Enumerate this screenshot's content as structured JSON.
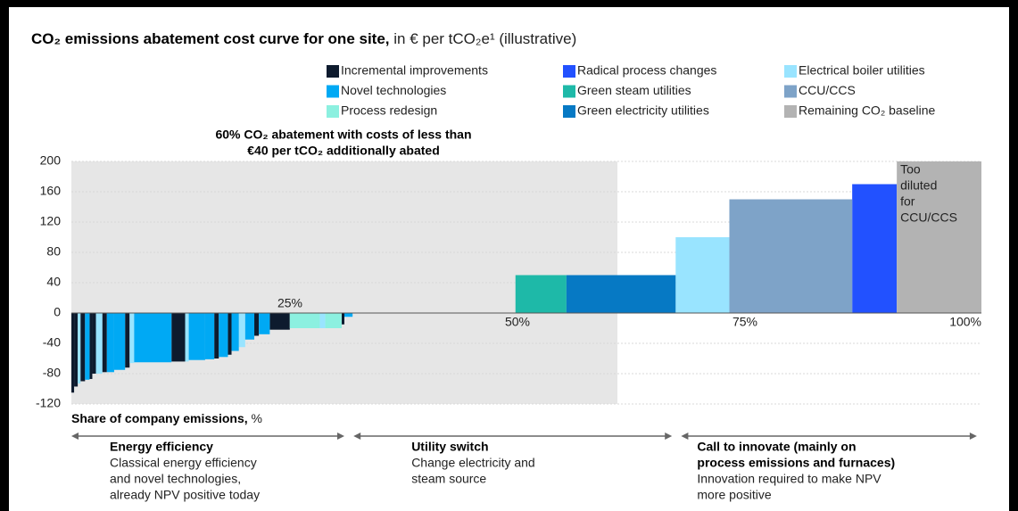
{
  "chart_data": {
    "type": "cost-curve",
    "title": "CO₂ emissions abatement cost curve for one site,",
    "subtitle": "in € per tCO₂e¹ (illustrative)",
    "annotation": [
      "60% CO₂ abatement with costs of less than",
      "€40 per tCO₂ additionally abated"
    ],
    "highlight": [
      0,
      60
    ],
    "bar_note": [
      "Too",
      "diluted",
      "for",
      "CCU/CCS"
    ],
    "xlabel": "Share of company emissions,",
    "xlabel_unit": "%",
    "xlim": [
      0,
      100
    ],
    "xticks": [
      {
        "value": 25,
        "label": "25%"
      },
      {
        "value": 50,
        "label": "50%"
      },
      {
        "value": 75,
        "label": "75%"
      },
      {
        "value": 100,
        "label": "100%"
      }
    ],
    "ylim": [
      -120,
      200
    ],
    "yticks": [
      -120,
      -80,
      -40,
      0,
      40,
      80,
      120,
      160,
      200
    ],
    "grid": true,
    "series": [
      {
        "name": "Incremental improvements",
        "color": "#0d1b2e",
        "bars": [
          {
            "x": [
              0,
              0.3
            ],
            "value": -105
          },
          {
            "x": [
              0.3,
              0.7
            ],
            "value": -97
          },
          {
            "x": [
              1.0,
              1.5
            ],
            "value": -90
          },
          {
            "x": [
              2.0,
              2.3
            ],
            "value": -87
          },
          {
            "x": [
              2.3,
              2.7
            ],
            "value": -80
          },
          {
            "x": [
              3.4,
              3.9
            ],
            "value": -78
          },
          {
            "x": [
              5.9,
              6.4
            ],
            "value": -72
          },
          {
            "x": [
              11.0,
              12.5
            ],
            "value": -64
          },
          {
            "x": [
              15.7,
              16.2
            ],
            "value": -60
          },
          {
            "x": [
              17.2,
              17.6
            ],
            "value": -55
          },
          {
            "x": [
              20.1,
              20.6
            ],
            "value": -30
          },
          {
            "x": [
              21.8,
              24.0
            ],
            "value": -22
          },
          {
            "x": [
              29.7,
              30.0
            ],
            "value": -15
          }
        ]
      },
      {
        "name": "Radical process changes",
        "color": "#2251ff",
        "bars": [
          {
            "x": [
              85.8,
              90.7
            ],
            "value": 170
          }
        ]
      },
      {
        "name": "Electrical boiler utilities",
        "color": "#99e4ff",
        "bars": [
          {
            "x": [
              0.7,
              1.0
            ],
            "value": -93
          },
          {
            "x": [
              2.7,
              3.4
            ],
            "value": -80
          },
          {
            "x": [
              6.4,
              6.9
            ],
            "value": -66
          },
          {
            "x": [
              12.5,
              12.9
            ],
            "value": -64
          },
          {
            "x": [
              18.4,
              19.1
            ],
            "value": -45
          },
          {
            "x": [
              27.3,
              27.9
            ],
            "value": -20
          },
          {
            "x": [
              66.4,
              72.3
            ],
            "value": 100
          }
        ]
      },
      {
        "name": "Novel technologies",
        "color": "#00a9f4",
        "bars": [
          {
            "x": [
              1.5,
              2.0
            ],
            "value": -88
          },
          {
            "x": [
              3.9,
              4.7
            ],
            "value": -78
          },
          {
            "x": [
              4.7,
              5.9
            ],
            "value": -75
          },
          {
            "x": [
              6.9,
              11.0
            ],
            "value": -65
          },
          {
            "x": [
              12.9,
              14.7
            ],
            "value": -62
          },
          {
            "x": [
              14.7,
              15.7
            ],
            "value": -61
          },
          {
            "x": [
              16.2,
              17.2
            ],
            "value": -58
          },
          {
            "x": [
              17.6,
              18.4
            ],
            "value": -50
          },
          {
            "x": [
              19.1,
              20.1
            ],
            "value": -35
          },
          {
            "x": [
              20.6,
              21.8
            ],
            "value": -28
          },
          {
            "x": [
              30.0,
              30.9
            ],
            "value": -5
          }
        ]
      },
      {
        "name": "Green steam utilities",
        "color": "#1eb9a8",
        "bars": [
          {
            "x": [
              48.8,
              54.4
            ],
            "value": 50
          }
        ]
      },
      {
        "name": "CCU/CCS",
        "color": "#7ea3c8",
        "bars": [
          {
            "x": [
              72.3,
              85.8
            ],
            "value": 150
          }
        ]
      },
      {
        "name": "Process redesign",
        "color": "#8cf0e0",
        "bars": [
          {
            "x": [
              24.0,
              27.3
            ],
            "value": -20
          },
          {
            "x": [
              27.9,
              29.7
            ],
            "value": -20
          }
        ]
      },
      {
        "name": "Green electricity utilities",
        "color": "#0679c4",
        "bars": [
          {
            "x": [
              54.4,
              66.4
            ],
            "value": 50
          }
        ]
      },
      {
        "name": "Remaining CO₂ baseline",
        "color": "#b3b3b3",
        "bars": [
          {
            "x": [
              90.7,
              100
            ],
            "value": 200
          }
        ]
      }
    ],
    "phases": [
      {
        "range": [
          0,
          30
        ],
        "heading": [
          "Energy efficiency"
        ],
        "text": [
          "Classical energy efficiency",
          "and novel technologies,",
          "already NPV positive today"
        ]
      },
      {
        "range": [
          31,
          66
        ],
        "heading": [
          "Utility switch"
        ],
        "text": [
          "Change electricity and",
          "steam source"
        ]
      },
      {
        "range": [
          67,
          99.5
        ],
        "heading": [
          "Call to innovate (mainly on",
          "process emissions and furnaces)"
        ],
        "text": [
          "Innovation required to make NPV",
          "more positive"
        ]
      }
    ]
  }
}
